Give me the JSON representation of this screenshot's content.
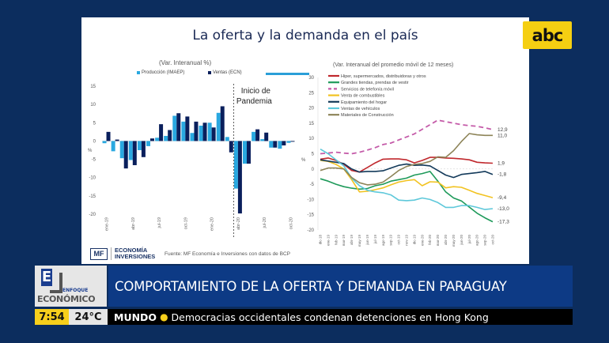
{
  "slide": {
    "title": "La oferta y la demanda en el país",
    "source": "Fuente: MF Economía e Inversiones con datos de BCP",
    "mf_logo": {
      "box": "MF",
      "line1": "ECONOMÍA",
      "line2": "INVERSIONES"
    }
  },
  "broadcast": {
    "channel_logo": "abc",
    "show_name_top": "ENFOQUE",
    "show_name_bottom": "ECONÓMICO",
    "show_initial": "E",
    "headline": "COMPORTAMIENTO DE LA OFERTA Y DEMANDA EN PARAGUAY",
    "clock": "7:54",
    "temperature": "24°C",
    "ticker_category": "MUNDO",
    "ticker_text": "Democracias occidentales condenan detenciones en Hong Kong"
  },
  "colors": {
    "background": "#0c2d5e",
    "headline_bar": "#0d3a85",
    "clock_bg": "#f7cf1c",
    "abc_logo_bg": "#f5cf12"
  },
  "chart_data": [
    {
      "type": "bar",
      "title": "(Var. Interanual %)",
      "ylabel": "%",
      "ylim": [
        -20,
        15
      ],
      "yticks": [
        15,
        10,
        5,
        0,
        -5,
        -10,
        -15,
        -20
      ],
      "categories": [
        "ene-19",
        "feb-19",
        "mar-19",
        "abr-19",
        "may-19",
        "jun-19",
        "jul-19",
        "ago-19",
        "sep-19",
        "oct-19",
        "nov-19",
        "dic-19",
        "ene-20",
        "feb-20",
        "mar-20",
        "abr-20",
        "may-20",
        "jun-20",
        "jul-20",
        "ago-20",
        "sep-20",
        "oct-20"
      ],
      "tick_labels": [
        "ene-19",
        "abr-19",
        "jul-19",
        "oct-19",
        "ene-20",
        "abr-20",
        "jul-20",
        "oct-20"
      ],
      "series": [
        {
          "name": "Producción (IMAEP)",
          "color": "#29a8e0",
          "values": [
            -0.6,
            -2.8,
            -4.7,
            -5.2,
            -2.5,
            -1.4,
            0.9,
            1.4,
            6.9,
            5.3,
            2.2,
            4.2,
            5.0,
            7.7,
            1.1,
            -13.0,
            -6.2,
            2.5,
            0.5,
            -1.8,
            -2.1,
            -0.5
          ]
        },
        {
          "name": "Ventas (ECN)",
          "color": "#0a1f5c",
          "values": [
            2.5,
            0.4,
            -7.5,
            -6.6,
            -4.4,
            0.7,
            4.6,
            3.0,
            7.6,
            6.7,
            5.3,
            5.0,
            3.7,
            9.5,
            -3.1,
            -19.8,
            -6.2,
            3.2,
            2.3,
            -1.8,
            -1.2,
            -0.2
          ]
        }
      ],
      "annotation": {
        "text_line1": "Inicio de",
        "text_line2": "Pandemia",
        "at_category": "mar-20"
      },
      "legend": "top"
    },
    {
      "type": "line",
      "title": "(Var. Interanual del promedio móvil de 12 meses)",
      "ylabel": "%",
      "ylim": [
        -20,
        30
      ],
      "yticks": [
        30,
        25,
        20,
        15,
        10,
        5,
        0,
        -5,
        -10,
        -15,
        -20
      ],
      "x": [
        "dic-18",
        "ene-19",
        "feb-19",
        "mar-19",
        "abr-19",
        "may-19",
        "jun-19",
        "jul-19",
        "ago-19",
        "sep-19",
        "oct-19",
        "nov-19",
        "dic-19",
        "ene-20",
        "feb-20",
        "mar-20",
        "abr-20",
        "may-20",
        "jun-20",
        "jul-20",
        "ago-20",
        "sep-20",
        "oct-20"
      ],
      "legend": "top-left",
      "series": [
        {
          "name": "Hiper, supermercados, distribuidoras y otros",
          "color": "#c0282d",
          "dash": false,
          "end_label": "1,9",
          "values": [
            3.2,
            3.6,
            2.8,
            1.5,
            -0.5,
            -1.0,
            0.5,
            2.0,
            3.2,
            3.3,
            3.3,
            3.0,
            2.0,
            2.8,
            3.8,
            3.8,
            3.6,
            3.5,
            3.3,
            3.0,
            2.2,
            2.0,
            1.9
          ]
        },
        {
          "name": "Grandes tiendas, prendas de vestir",
          "color": "#1e9a5a",
          "dash": false,
          "end_label": "-17,3",
          "values": [
            -3.2,
            -4.0,
            -5.0,
            -5.8,
            -6.3,
            -6.6,
            -6.4,
            -5.5,
            -5.0,
            -4.0,
            -3.5,
            -3.0,
            -2.0,
            -1.5,
            -0.8,
            -4.0,
            -7.5,
            -9.5,
            -10.5,
            -12.5,
            -14.5,
            -16.0,
            -17.3
          ]
        },
        {
          "name": "Servicios de telefonía móvil",
          "color": "#c45aa8",
          "dash": true,
          "end_label": "12,9",
          "values": [
            5.0,
            5.2,
            5.5,
            5.2,
            5.0,
            5.5,
            6.2,
            7.0,
            8.0,
            8.5,
            9.5,
            10.5,
            11.5,
            13.0,
            14.5,
            16.0,
            15.5,
            15.0,
            14.5,
            14.2,
            14.0,
            13.5,
            12.9
          ]
        },
        {
          "name": "Venta de combustibles",
          "color": "#f2c321",
          "dash": false,
          "end_label": "-9,4",
          "values": [
            2.8,
            2.5,
            1.5,
            0.0,
            -3.5,
            -7.5,
            -7.3,
            -6.8,
            -6.2,
            -5.2,
            -4.3,
            -3.8,
            -3.5,
            -5.5,
            -4.2,
            -4.3,
            -6.2,
            -5.8,
            -6.0,
            -7.0,
            -8.0,
            -8.7,
            -9.4
          ]
        },
        {
          "name": "Equipamiento del hogar",
          "color": "#133a5a",
          "dash": false,
          "end_label": "-1,8",
          "values": [
            3.0,
            2.6,
            2.2,
            1.8,
            0.0,
            -1.0,
            -0.8,
            -0.8,
            -0.6,
            0.3,
            1.2,
            1.6,
            1.2,
            1.3,
            1.0,
            -0.5,
            -2.0,
            -2.8,
            -1.8,
            -1.5,
            -1.2,
            -0.8,
            -1.8
          ]
        },
        {
          "name": "Ventas de vehículos",
          "color": "#5ec8da",
          "dash": false,
          "end_label": "-13,0",
          "values": [
            6.5,
            5.0,
            3.0,
            1.0,
            -3.0,
            -5.5,
            -7.0,
            -7.5,
            -7.8,
            -8.5,
            -10.2,
            -10.4,
            -10.2,
            -9.5,
            -10.0,
            -11.0,
            -12.6,
            -12.6,
            -12.0,
            -12.0,
            -12.6,
            -13.3,
            -13.0
          ]
        },
        {
          "name": "Materiales de Construcción",
          "color": "#8d8458",
          "dash": false,
          "end_label": "11,0",
          "values": [
            -0.5,
            0.3,
            0.3,
            0.0,
            -2.8,
            -4.5,
            -5.2,
            -5.0,
            -4.3,
            -2.5,
            -0.5,
            0.8,
            1.5,
            1.8,
            2.5,
            4.0,
            3.8,
            6.0,
            9.0,
            11.6,
            11.2,
            11.0,
            11.0
          ]
        }
      ]
    }
  ]
}
